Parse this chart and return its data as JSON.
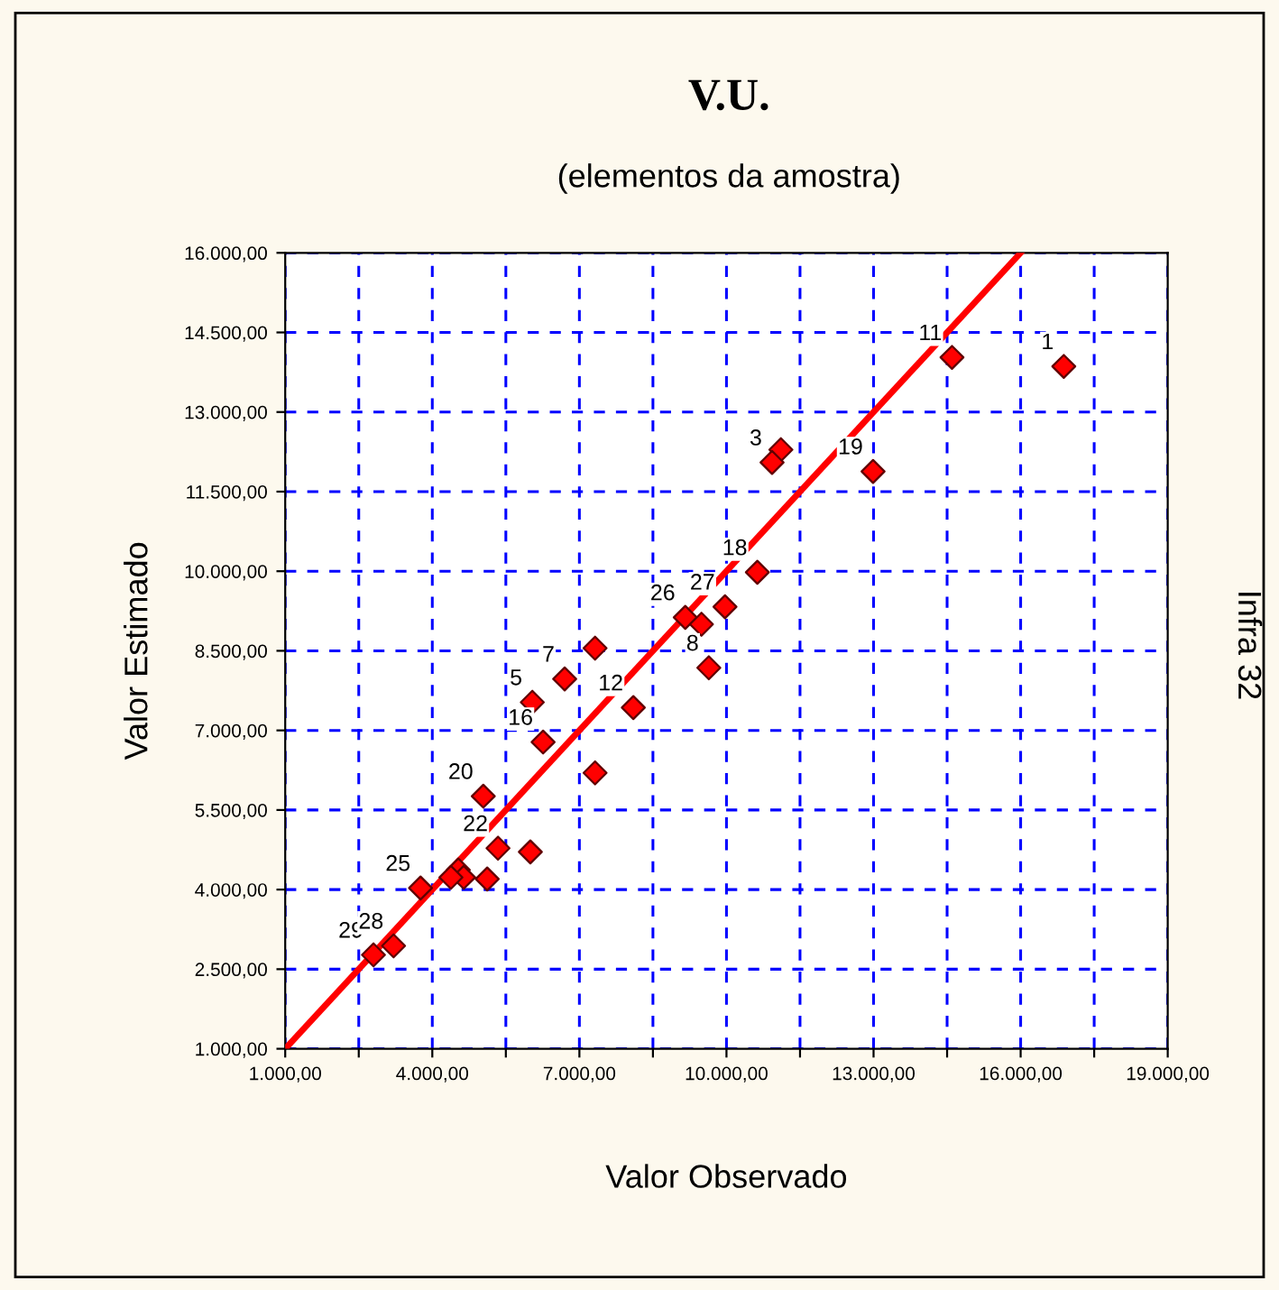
{
  "chart_data": {
    "type": "scatter",
    "title": "V.U.",
    "subtitle": "(elementos da amostra)",
    "xlabel": "Valor Observado",
    "ylabel": "Valor Estimado",
    "y2label": "Infra 32",
    "xlim": [
      1000,
      19000
    ],
    "ylim": [
      1000,
      16000
    ],
    "xticks": [
      {
        "value": 1000,
        "label": "1.000,00"
      },
      {
        "value": 2500,
        "label": null
      },
      {
        "value": 4000,
        "label": "4.000,00"
      },
      {
        "value": 5500,
        "label": null
      },
      {
        "value": 7000,
        "label": "7.000,00"
      },
      {
        "value": 8500,
        "label": null
      },
      {
        "value": 10000,
        "label": "10.000,00"
      },
      {
        "value": 11500,
        "label": null
      },
      {
        "value": 13000,
        "label": "13.000,00"
      },
      {
        "value": 14500,
        "label": null
      },
      {
        "value": 16000,
        "label": "16.000,00"
      },
      {
        "value": 17500,
        "label": null
      },
      {
        "value": 19000,
        "label": "19.000,00"
      }
    ],
    "yticks": [
      {
        "value": 1000,
        "label": "1.000,00"
      },
      {
        "value": 2500,
        "label": "2.500,00"
      },
      {
        "value": 4000,
        "label": "4.000,00"
      },
      {
        "value": 5500,
        "label": "5.500,00"
      },
      {
        "value": 7000,
        "label": "7.000,00"
      },
      {
        "value": 8500,
        "label": "8.500,00"
      },
      {
        "value": 10000,
        "label": "10.000,00"
      },
      {
        "value": 11500,
        "label": "11.500,00"
      },
      {
        "value": 13000,
        "label": "13.000,00"
      },
      {
        "value": 14500,
        "label": "14.500,00"
      },
      {
        "value": 16000,
        "label": "16.000,00"
      }
    ],
    "grid": true,
    "legend": false,
    "series": [
      {
        "marker": "diamond",
        "color": "#ff0000",
        "x": [
          16880,
          14600,
          12990,
          11110,
          10930,
          10630,
          9970,
          9160,
          9490,
          9640,
          7320,
          6700,
          6040,
          6260,
          8100,
          7320,
          5040,
          5340,
          6000,
          5120,
          4530,
          4640,
          4380,
          3760,
          3210,
          2800
        ],
        "values": [
          13860,
          14030,
          11880,
          12290,
          12050,
          9980,
          9330,
          9130,
          9000,
          8180,
          8550,
          7970,
          7530,
          6780,
          7430,
          6200,
          5760,
          4780,
          4710,
          4200,
          4370,
          4230,
          4230,
          4030,
          2940,
          2770
        ]
      },
      {
        "type": "line",
        "marker": "none",
        "color": "#ff0000",
        "x": [
          1000,
          16000
        ],
        "values": [
          1000,
          16000
        ]
      }
    ],
    "annotations": [
      {
        "text": "1",
        "x": 16880,
        "y": 13860
      },
      {
        "text": "11",
        "x": 14600,
        "y": 14030
      },
      {
        "text": "19",
        "x": 12990,
        "y": 11880
      },
      {
        "text": "3",
        "x": 10930,
        "y": 12050
      },
      {
        "text": "18",
        "x": 10630,
        "y": 9980
      },
      {
        "text": "26",
        "x": 9160,
        "y": 9130
      },
      {
        "text": "27",
        "x": 9970,
        "y": 9330
      },
      {
        "text": "8",
        "x": 9640,
        "y": 8180
      },
      {
        "text": "7",
        "x": 6700,
        "y": 7970
      },
      {
        "text": "5",
        "x": 6040,
        "y": 7530
      },
      {
        "text": "16",
        "x": 6260,
        "y": 6780
      },
      {
        "text": "12",
        "x": 8100,
        "y": 7430
      },
      {
        "text": "20",
        "x": 5040,
        "y": 5760
      },
      {
        "text": "22",
        "x": 5340,
        "y": 4780
      },
      {
        "text": "25",
        "x": 3760,
        "y": 4030
      },
      {
        "text": "29",
        "x": 2800,
        "y": 2770
      },
      {
        "text": "28",
        "x": 3210,
        "y": 2940
      }
    ]
  }
}
